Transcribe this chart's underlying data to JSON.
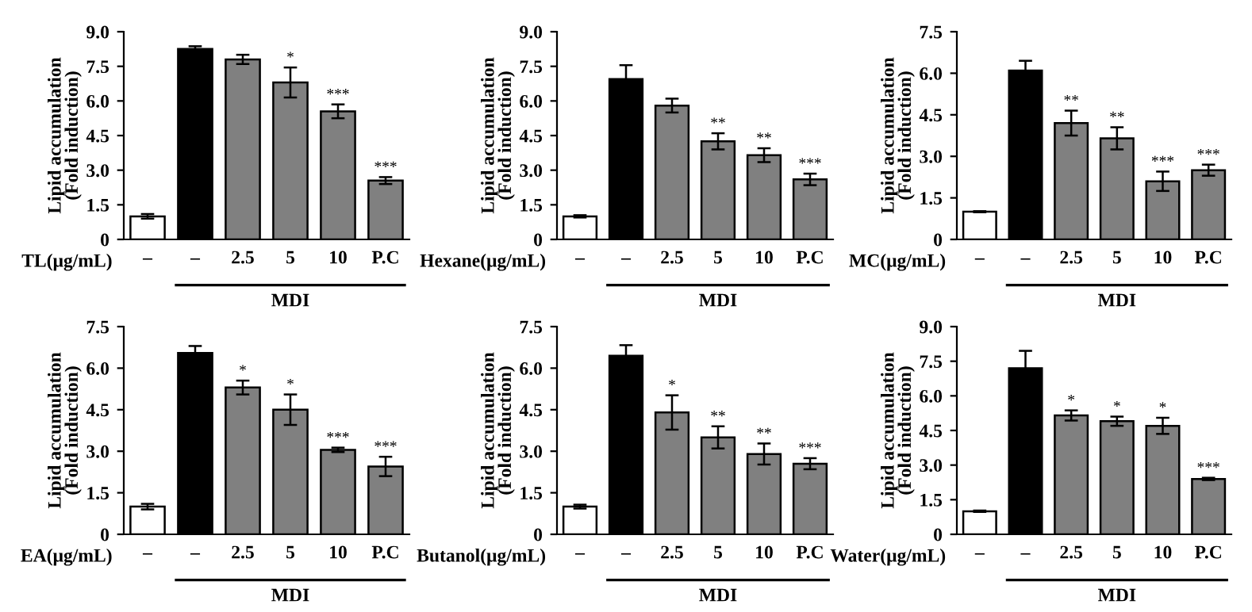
{
  "chart_data": [
    {
      "type": "bar",
      "ylabel": "Lipid accumulation\n(Fold induction)",
      "xlabel": "TL(μg/mL)",
      "categories": [
        "–",
        "–",
        "2.5",
        "5",
        "10",
        "P.C"
      ],
      "values": [
        1.0,
        8.25,
        7.8,
        6.8,
        5.55,
        2.55
      ],
      "errors": [
        0.1,
        0.12,
        0.2,
        0.65,
        0.3,
        0.15
      ],
      "colors": [
        "#ffffff",
        "#000000",
        "#808080",
        "#808080",
        "#808080",
        "#808080"
      ],
      "ylim": [
        0,
        9
      ],
      "yticks": [
        0,
        1.5,
        {
          "value": 3,
          "label": "3.0"
        },
        4.5,
        {
          "value": 6,
          "label": "6.0"
        },
        7.5,
        {
          "value": 9,
          "label": "9.0"
        }
      ],
      "grid": false,
      "legend": false,
      "annotations": [
        "MDI",
        {
          "text": "*",
          "x": "5",
          "y": 7.45
        },
        {
          "text": "***",
          "x": "10",
          "y": 5.85
        },
        {
          "text": "***",
          "x": "P.C",
          "y": 2.7
        }
      ]
    },
    {
      "type": "bar",
      "ylabel": "Lipid accumulation\n(Fold induction)",
      "xlabel": "Hexane(μg/mL)",
      "categories": [
        "–",
        "–",
        "2.5",
        "5",
        "10",
        "P.C"
      ],
      "values": [
        1.0,
        6.95,
        5.8,
        4.25,
        3.65,
        2.6
      ],
      "errors": [
        0.05,
        0.6,
        0.3,
        0.35,
        0.3,
        0.25
      ],
      "colors": [
        "#ffffff",
        "#000000",
        "#808080",
        "#808080",
        "#808080",
        "#808080"
      ],
      "ylim": [
        0,
        9
      ],
      "yticks": [
        0,
        1.5,
        {
          "value": 3,
          "label": "3.0"
        },
        4.5,
        {
          "value": 6,
          "label": "6.0"
        },
        7.5,
        {
          "value": 9,
          "label": "9.0"
        }
      ],
      "grid": false,
      "legend": false,
      "annotations": [
        "MDI",
        {
          "text": "**",
          "x": "5",
          "y": 4.6
        },
        {
          "text": "**",
          "x": "10",
          "y": 3.95
        },
        {
          "text": "***",
          "x": "P.C",
          "y": 2.85
        }
      ]
    },
    {
      "type": "bar",
      "ylabel": "Lipid accumulation\n(Fold induction)",
      "xlabel": "MC(μg/mL)",
      "categories": [
        "–",
        "–",
        "2.5",
        "5",
        "10",
        "P.C"
      ],
      "values": [
        1.0,
        6.1,
        4.2,
        3.65,
        2.1,
        2.5
      ],
      "errors": [
        0.02,
        0.35,
        0.45,
        0.4,
        0.35,
        0.2
      ],
      "colors": [
        "#ffffff",
        "#000000",
        "#808080",
        "#808080",
        "#808080",
        "#808080"
      ],
      "ylim": [
        0,
        7.5
      ],
      "yticks": [
        0,
        1.5,
        {
          "value": 3,
          "label": "3.0"
        },
        4.5,
        {
          "value": 6,
          "label": "6.0"
        },
        7.5
      ],
      "grid": false,
      "legend": false,
      "annotations": [
        "MDI",
        {
          "text": "**",
          "x": "2.5",
          "y": 4.65
        },
        {
          "text": "**",
          "x": "5",
          "y": 4.05
        },
        {
          "text": "***",
          "x": "10",
          "y": 2.45
        },
        {
          "text": "***",
          "x": "P.C",
          "y": 2.7
        }
      ]
    },
    {
      "type": "bar",
      "ylabel": "Lipid accumulation\n(Fold induction)",
      "xlabel": "EA(μg/mL)",
      "categories": [
        "–",
        "–",
        "2.5",
        "5",
        "10",
        "P.C"
      ],
      "values": [
        1.0,
        6.55,
        5.3,
        4.5,
        3.05,
        2.45
      ],
      "errors": [
        0.1,
        0.25,
        0.25,
        0.55,
        0.08,
        0.35
      ],
      "colors": [
        "#ffffff",
        "#000000",
        "#808080",
        "#808080",
        "#808080",
        "#808080"
      ],
      "ylim": [
        0,
        7.5
      ],
      "yticks": [
        0,
        1.5,
        {
          "value": 3,
          "label": "3.0"
        },
        4.5,
        {
          "value": 6,
          "label": "6.0"
        },
        7.5
      ],
      "grid": false,
      "legend": false,
      "annotations": [
        "MDI",
        {
          "text": "*",
          "x": "2.5",
          "y": 5.55
        },
        {
          "text": "*",
          "x": "5",
          "y": 5.05
        },
        {
          "text": "***",
          "x": "10",
          "y": 3.13
        },
        {
          "text": "***",
          "x": "P.C",
          "y": 2.8
        }
      ]
    },
    {
      "type": "bar",
      "ylabel": "Lipid accumulation\n(Fold induction)",
      "xlabel": "Butanol(μg/mL)",
      "categories": [
        "–",
        "–",
        "2.5",
        "5",
        "10",
        "P.C"
      ],
      "values": [
        1.0,
        6.45,
        4.4,
        3.5,
        2.9,
        2.55
      ],
      "errors": [
        0.07,
        0.38,
        0.62,
        0.4,
        0.38,
        0.2
      ],
      "colors": [
        "#ffffff",
        "#000000",
        "#808080",
        "#808080",
        "#808080",
        "#808080"
      ],
      "ylim": [
        0,
        7.5
      ],
      "yticks": [
        0,
        1.5,
        {
          "value": 3,
          "label": "3.0"
        },
        4.5,
        {
          "value": 6,
          "label": "6.0"
        },
        7.5
      ],
      "grid": false,
      "legend": false,
      "annotations": [
        "MDI",
        {
          "text": "*",
          "x": "2.5",
          "y": 5.02
        },
        {
          "text": "**",
          "x": "5",
          "y": 3.9
        },
        {
          "text": "**",
          "x": "10",
          "y": 3.28
        },
        {
          "text": "***",
          "x": "P.C",
          "y": 2.75
        }
      ]
    },
    {
      "type": "bar",
      "ylabel": "Lipid accumulation\n(Fold induction)",
      "xlabel": "Water(μg/mL)",
      "categories": [
        "–",
        "–",
        "2.5",
        "5",
        "10",
        "P.C"
      ],
      "values": [
        1.0,
        7.2,
        5.15,
        4.9,
        4.7,
        2.4
      ],
      "errors": [
        0.03,
        0.75,
        0.22,
        0.2,
        0.35,
        0.05
      ],
      "colors": [
        "#ffffff",
        "#000000",
        "#808080",
        "#808080",
        "#808080",
        "#808080"
      ],
      "ylim": [
        0,
        9
      ],
      "yticks": [
        0,
        1.5,
        {
          "value": 3,
          "label": "3.0"
        },
        4.5,
        {
          "value": 6,
          "label": "6.0"
        },
        7.5,
        {
          "value": 9,
          "label": "9.0"
        }
      ],
      "grid": false,
      "legend": false,
      "annotations": [
        "MDI",
        {
          "text": "*",
          "x": "2.5",
          "y": 5.37
        },
        {
          "text": "*",
          "x": "5",
          "y": 5.1
        },
        {
          "text": "*",
          "x": "10",
          "y": 5.05
        },
        {
          "text": "***",
          "x": "P.C",
          "y": 2.45
        }
      ]
    }
  ]
}
